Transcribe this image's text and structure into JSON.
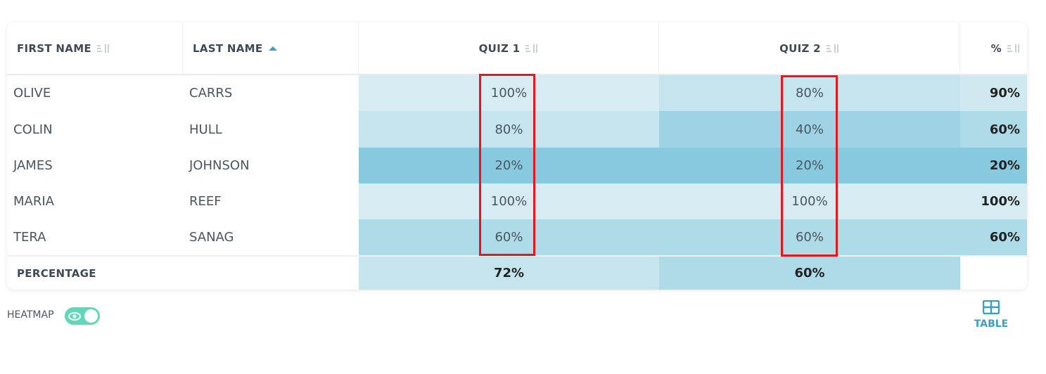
{
  "header": {
    "columns": [
      "FIRST NAME",
      "LAST NAME",
      "QUIZ 1",
      "QUIZ 2",
      "%"
    ]
  },
  "table": {
    "rows": [
      [
        "OLIVE",
        "CARRS",
        "100%",
        "80%",
        "90%"
      ],
      [
        "COLIN",
        "HULL",
        "80%",
        "40%",
        "60%"
      ],
      [
        "JAMES",
        "JOHNSON",
        "20%",
        "20%",
        "20%"
      ],
      [
        "MARIA",
        "REEF",
        "100%",
        "100%",
        "100%"
      ],
      [
        "TERA",
        "SANAG",
        "60%",
        "60%",
        "60%"
      ]
    ]
  },
  "footer": {
    "label": "PERCENTAGE",
    "values": [
      "72%",
      "60%"
    ]
  },
  "controls": {
    "heatmap_label": "HEATMAP",
    "view_label": "TABLE"
  }
}
